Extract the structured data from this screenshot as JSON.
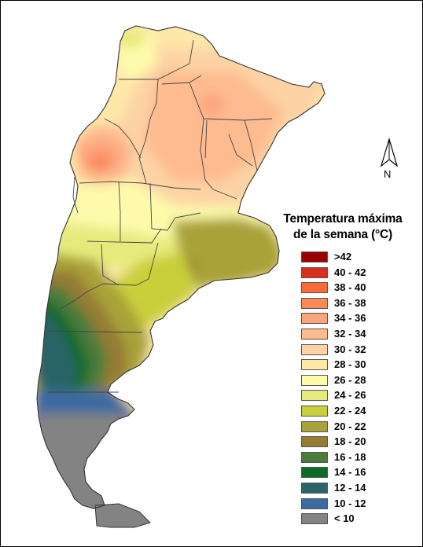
{
  "legend": {
    "title_line1": "Temperatura máxima",
    "title_line2": "de la semana (°C)",
    "items": [
      {
        "label": ">42",
        "color": "#9b0000"
      },
      {
        "label": "40 - 42",
        "color": "#d7301f"
      },
      {
        "label": "38 - 40",
        "color": "#fc6a38"
      },
      {
        "label": "36 - 38",
        "color": "#fb8a5a"
      },
      {
        "label": "34 - 36",
        "color": "#fca57d"
      },
      {
        "label": "32 - 34",
        "color": "#fdbb8f"
      },
      {
        "label": "30 - 32",
        "color": "#fdd3a5"
      },
      {
        "label": "28 - 30",
        "color": "#fee8a8"
      },
      {
        "label": "26 - 28",
        "color": "#fdfbab"
      },
      {
        "label": "24 - 26",
        "color": "#e6ea7c"
      },
      {
        "label": "22 - 24",
        "color": "#c9cf3a"
      },
      {
        "label": "20 - 22",
        "color": "#a9a238"
      },
      {
        "label": "18 - 20",
        "color": "#957c35"
      },
      {
        "label": "16 - 18",
        "color": "#4a7c3a"
      },
      {
        "label": "14 - 16",
        "color": "#0f6a2a"
      },
      {
        "label": "12 - 14",
        "color": "#2c6466"
      },
      {
        "label": "10 - 12",
        "color": "#3d6aa0"
      },
      {
        "label": "< 10",
        "color": "#838383"
      }
    ]
  },
  "north_arrow": {
    "label": "N",
    "icon": "north-arrow-icon"
  },
  "map": {
    "region": "Argentina",
    "boundary_color": "#444444",
    "outline_color": "#333333"
  }
}
